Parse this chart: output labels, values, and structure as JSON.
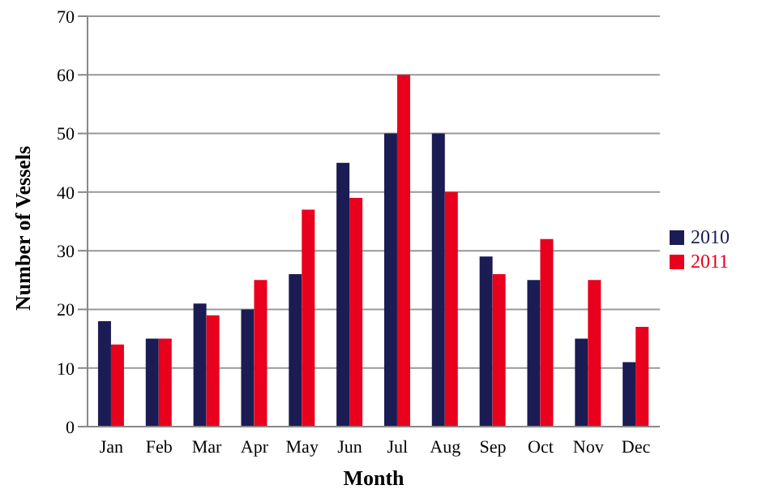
{
  "chart_data": {
    "type": "bar",
    "xlabel": "Month",
    "ylabel": "Number of Vessels",
    "categories": [
      "Jan",
      "Feb",
      "Mar",
      "Apr",
      "May",
      "Jun",
      "Jul",
      "Aug",
      "Sep",
      "Oct",
      "Nov",
      "Dec"
    ],
    "series": [
      {
        "name": "2010",
        "color": "#1c1c54",
        "values": [
          18,
          15,
          21,
          20,
          26,
          45,
          50,
          50,
          29,
          25,
          15,
          11
        ]
      },
      {
        "name": "2011",
        "color": "#e8001c",
        "values": [
          14,
          15,
          19,
          25,
          37,
          39,
          60,
          40,
          26,
          32,
          25,
          17
        ]
      }
    ],
    "ylim": [
      0,
      70
    ],
    "yticks": [
      0,
      10,
      20,
      30,
      40,
      50,
      60,
      70
    ],
    "grid": "y",
    "legend": "right"
  }
}
